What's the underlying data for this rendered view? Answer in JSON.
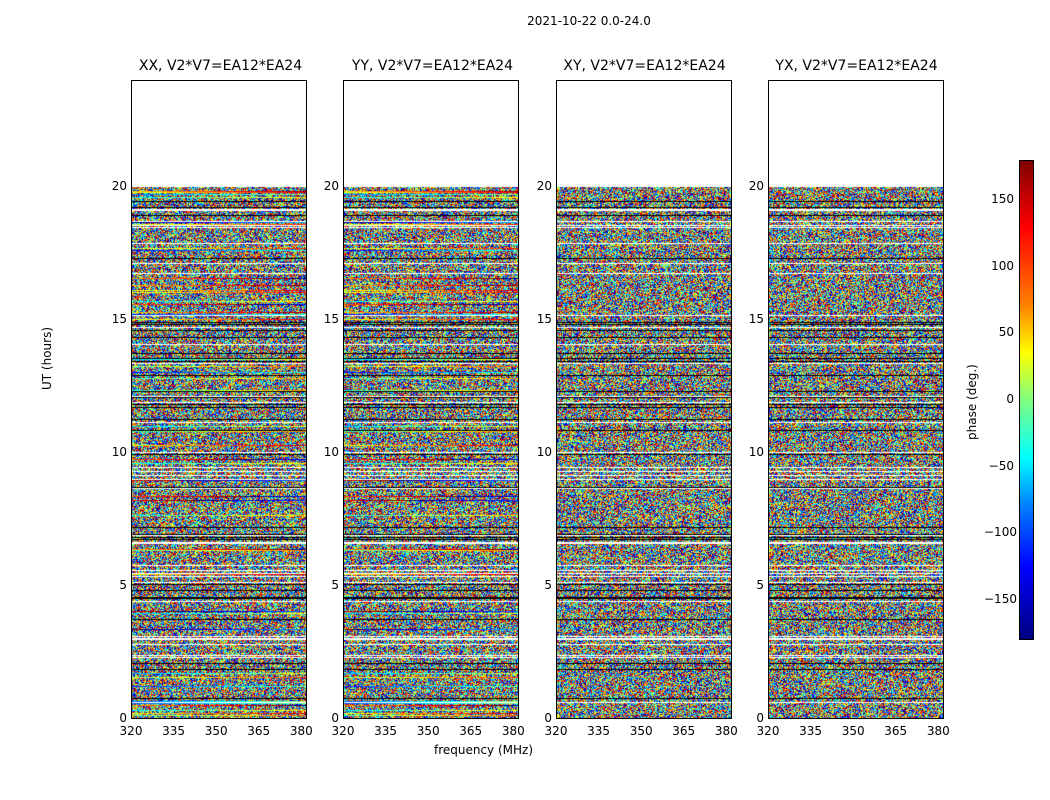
{
  "figure_title": "2021-10-22 0.0-24.0",
  "chart_data": {
    "type": "heatmap",
    "panels": [
      {
        "title": "XX, V2*V7=EA12*EA24"
      },
      {
        "title": "YY, V2*V7=EA12*EA24"
      },
      {
        "title": "XY, V2*V7=EA12*EA24"
      },
      {
        "title": "YX, V2*V7=EA12*EA24"
      }
    ],
    "xlabel": "frequency (MHz)",
    "ylabel": "UT (hours)",
    "x_ticks": [
      "320",
      "335",
      "350",
      "365",
      "380"
    ],
    "x_range": [
      320,
      382
    ],
    "y_ticks": [
      "0",
      "5",
      "10",
      "15",
      "20"
    ],
    "y_range": [
      0,
      24
    ],
    "data_extent_hours": [
      0,
      20
    ],
    "colorbar": {
      "label": "phase (deg.)",
      "ticks": [
        "150",
        "100",
        "50",
        "0",
        "−50",
        "−100",
        "−150"
      ],
      "range": [
        -180,
        180
      ],
      "colormap": "jet"
    },
    "colors": {
      "cmap_dark_red": "#800000",
      "cmap_red": "#ff0000",
      "cmap_yellow": "#ffff00",
      "cmap_cyan": "#00ffff",
      "cmap_blue": "#0000ff",
      "cmap_dark_blue": "#000080"
    }
  }
}
